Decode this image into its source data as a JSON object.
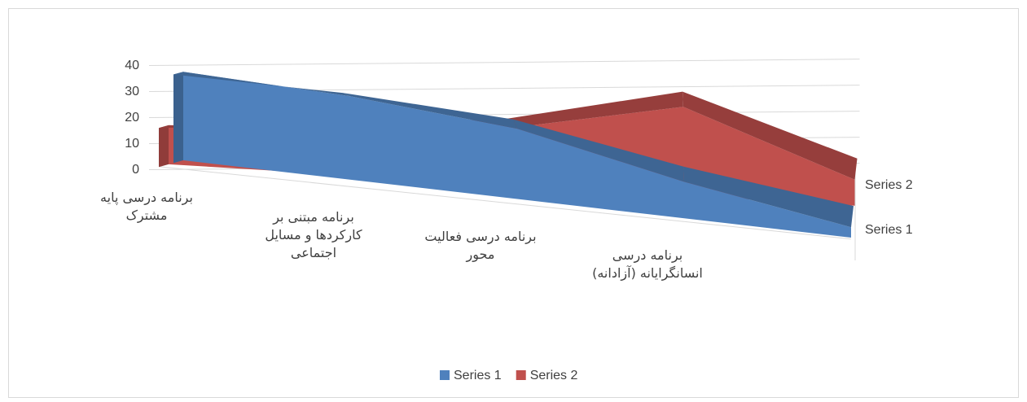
{
  "chart_data": {
    "type": "area3d",
    "categories": [
      "برنامه درسی پایه مشترک",
      "برنامه مبتنی بر کارکردها و مسایل اجتماعی",
      "برنامه درسی فعالیت محور",
      "برنامه درسی انسانگرایانه (آزادانه)",
      null
    ],
    "series": [
      {
        "name": "Series 1",
        "color": "#4f81bd",
        "values": [
          34,
          32,
          27,
          14,
          4
        ]
      },
      {
        "name": "Series 2",
        "color": "#c0504d",
        "values": [
          15,
          18,
          22,
          34,
          10
        ]
      }
    ],
    "ylim": [
      0,
      40
    ],
    "yticks": [
      0,
      10,
      20,
      30,
      40
    ],
    "grid": true,
    "legend": "bottom"
  }
}
